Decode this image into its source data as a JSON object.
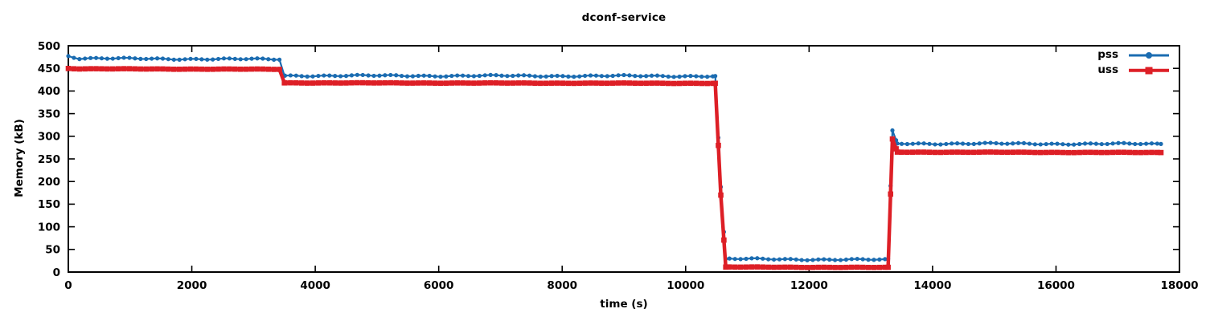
{
  "chart_data": {
    "type": "line",
    "title": "dconf-service",
    "xlabel": "time (s)",
    "ylabel": "Memory (kB)",
    "xlim": [
      0,
      18000
    ],
    "ylim": [
      0,
      500
    ],
    "xticks": [
      0,
      2000,
      4000,
      6000,
      8000,
      10000,
      12000,
      14000,
      16000,
      18000
    ],
    "yticks": [
      0,
      50,
      100,
      150,
      200,
      250,
      300,
      350,
      400,
      450,
      500
    ],
    "grid": false,
    "legend_position": "top-right-inside",
    "sample_interval_s": 90,
    "series": [
      {
        "name": "pss",
        "color": "#1b6cb1",
        "marker": "circle",
        "line_width": 2.2,
        "points": [
          [
            0,
            478
          ],
          [
            180,
            472
          ],
          [
            3420,
            470
          ],
          [
            3500,
            434
          ],
          [
            10480,
            433
          ],
          [
            10570,
            188
          ],
          [
            10650,
            29
          ],
          [
            13280,
            27
          ],
          [
            13350,
            313
          ],
          [
            13430,
            284
          ],
          [
            17700,
            283
          ]
        ]
      },
      {
        "name": "uss",
        "color": "#dd1f26",
        "marker": "square",
        "line_width": 4.5,
        "points": [
          [
            0,
            450
          ],
          [
            180,
            449
          ],
          [
            3420,
            448
          ],
          [
            3500,
            418
          ],
          [
            10480,
            417
          ],
          [
            10570,
            170
          ],
          [
            10650,
            11
          ],
          [
            13280,
            10
          ],
          [
            13350,
            294
          ],
          [
            13430,
            265
          ],
          [
            17700,
            264
          ]
        ]
      }
    ],
    "axis_color": "#000000",
    "background_color": "#ffffff"
  }
}
